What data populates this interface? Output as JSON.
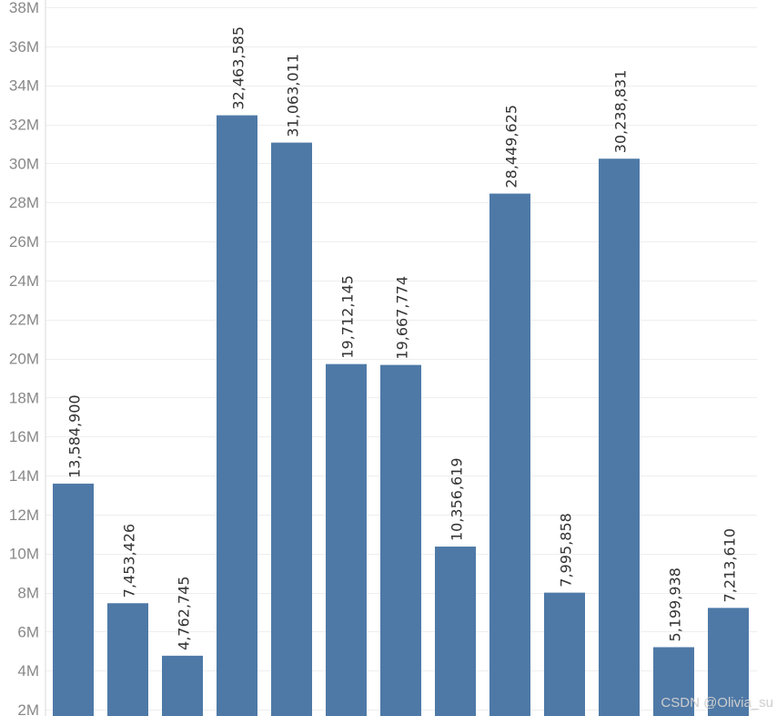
{
  "chart_data": {
    "type": "bar",
    "title": "",
    "xlabel": "",
    "ylabel": "",
    "values": [
      13584900,
      7453426,
      4762745,
      32463585,
      31063011,
      19712145,
      19667774,
      10356619,
      28449625,
      7995858,
      30238831,
      5199938,
      7213610
    ],
    "data_labels": [
      "13,584,900",
      "7,453,426",
      "4,762,745",
      "32,463,585",
      "31,063,011",
      "19,712,145",
      "19,667,774",
      "10,356,619",
      "28,449,625",
      "7,995,858",
      "30,238,831",
      "5,199,938",
      "7,213,610"
    ],
    "ylim": [
      2000000,
      38000000
    ],
    "yticks": [
      2000000,
      4000000,
      6000000,
      8000000,
      10000000,
      12000000,
      14000000,
      16000000,
      18000000,
      20000000,
      22000000,
      24000000,
      26000000,
      28000000,
      30000000,
      32000000,
      34000000,
      36000000,
      38000000
    ],
    "ytick_labels": [
      "2M",
      "4M",
      "6M",
      "8M",
      "10M",
      "12M",
      "14M",
      "16M",
      "18M",
      "20M",
      "22M",
      "24M",
      "26M",
      "28M",
      "30M",
      "32M",
      "34M",
      "36M",
      "38M"
    ],
    "grid": true,
    "bar_color": "#4e79a7",
    "grid_color": "#eeeeee",
    "label_color": "#333333",
    "tick_color": "#888888"
  },
  "watermark": "CSDN @Olivia_su"
}
